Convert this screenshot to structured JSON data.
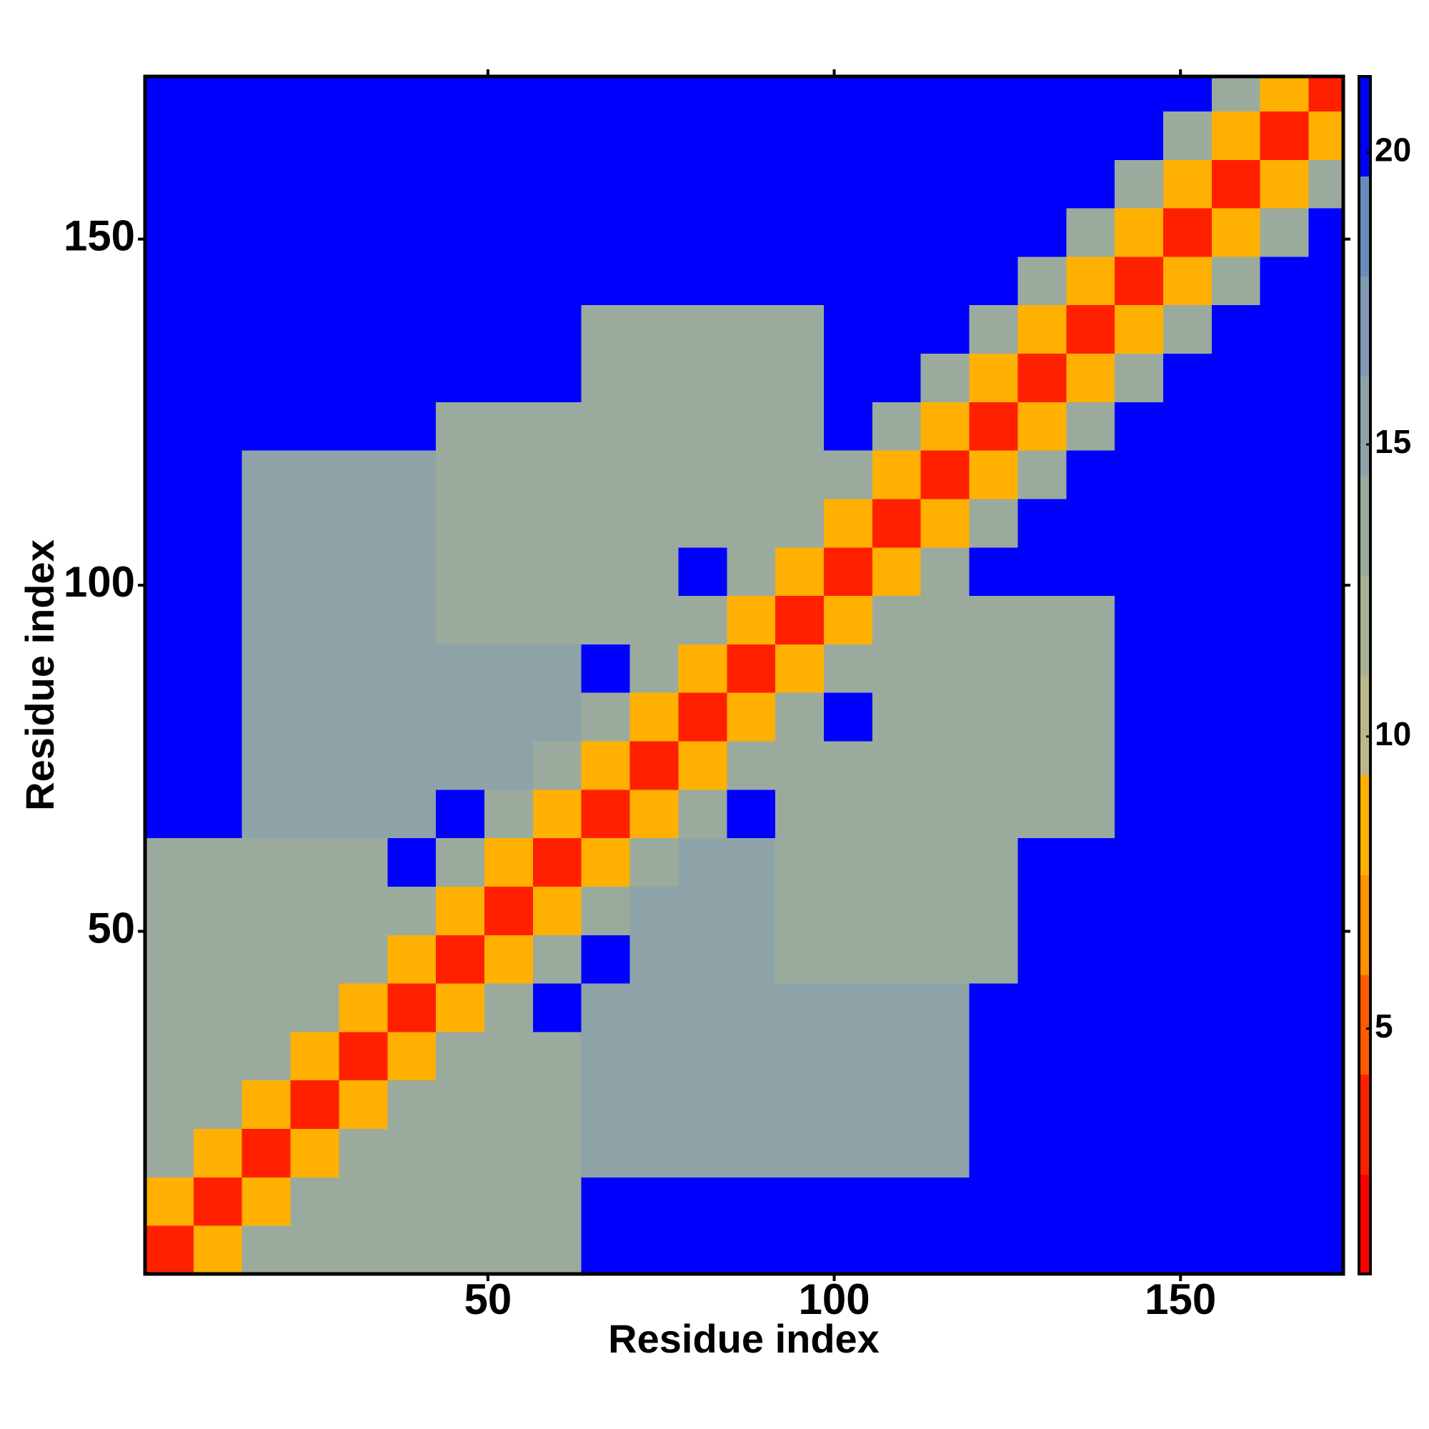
{
  "chart_data": {
    "type": "heatmap",
    "x_label": "Residue index",
    "y_label": "Residue index",
    "xbins": [
      0.5,
      7.5,
      14.5,
      21.5,
      28.5,
      35.5,
      42.5,
      49.5,
      56.5,
      63.5,
      70.5,
      77.5,
      84.5,
      91.5,
      98.5,
      105.5,
      112.5,
      119.5,
      126.5,
      133.5,
      140.5,
      147.5,
      154.5,
      161.5,
      168.5,
      173.5
    ],
    "ybins": [
      0.5,
      7.5,
      14.5,
      21.5,
      28.5,
      35.5,
      42.5,
      49.5,
      56.5,
      63.5,
      70.5,
      77.5,
      84.5,
      91.5,
      98.5,
      105.5,
      112.5,
      119.5,
      126.5,
      133.5,
      140.5,
      147.5,
      154.5,
      161.5,
      168.5,
      173.5
    ],
    "xlim": [
      0.5,
      173.5
    ],
    "ylim": [
      0.5,
      173.5
    ],
    "xticks": [
      50,
      100,
      150
    ],
    "yticks": [
      50,
      100,
      150
    ],
    "z": [
      [
        4,
        9,
        13,
        13,
        13,
        13,
        14,
        14,
        14,
        21,
        21,
        21,
        21,
        21,
        21,
        21,
        21,
        21,
        21,
        21,
        21,
        21,
        21,
        21,
        21
      ],
      [
        9,
        4,
        9,
        13,
        13,
        13,
        14,
        14,
        14,
        21,
        21,
        21,
        21,
        21,
        21,
        21,
        21,
        21,
        21,
        21,
        21,
        21,
        21,
        21,
        21
      ],
      [
        13,
        9,
        4,
        9,
        13,
        13,
        14,
        14,
        14,
        15,
        15,
        15,
        15,
        15,
        15,
        15,
        15,
        21,
        21,
        21,
        21,
        21,
        21,
        21,
        21
      ],
      [
        13,
        13,
        9,
        4,
        9,
        14,
        14,
        14,
        14,
        15,
        15,
        15,
        15,
        15,
        15,
        15,
        15,
        21,
        21,
        21,
        21,
        21,
        21,
        21,
        21
      ],
      [
        13,
        13,
        13,
        9,
        4,
        9,
        14,
        14,
        14,
        15,
        15,
        15,
        15,
        15,
        15,
        15,
        15,
        21,
        21,
        21,
        21,
        21,
        21,
        21,
        21
      ],
      [
        13,
        13,
        13,
        14,
        9,
        4,
        9,
        14,
        21,
        15,
        15,
        15,
        15,
        15,
        15,
        15,
        15,
        21,
        21,
        21,
        21,
        21,
        21,
        21,
        21
      ],
      [
        14,
        14,
        14,
        14,
        14,
        9,
        4,
        9,
        14,
        21,
        15,
        15,
        15,
        14,
        14,
        14,
        14,
        14,
        21,
        21,
        21,
        21,
        21,
        21,
        21
      ],
      [
        14,
        14,
        14,
        14,
        14,
        14,
        9,
        4,
        9,
        14,
        15,
        15,
        15,
        14,
        14,
        14,
        14,
        14,
        21,
        21,
        21,
        21,
        21,
        21,
        21
      ],
      [
        14,
        14,
        14,
        14,
        14,
        21,
        14,
        9,
        4,
        9,
        14,
        15,
        15,
        14,
        14,
        14,
        14,
        14,
        21,
        21,
        21,
        21,
        21,
        21,
        21
      ],
      [
        21,
        21,
        15,
        15,
        15,
        15,
        21,
        14,
        9,
        4,
        9,
        14,
        21,
        14,
        14,
        14,
        14,
        14,
        14,
        14,
        21,
        21,
        21,
        21,
        21
      ],
      [
        21,
        21,
        15,
        15,
        15,
        15,
        15,
        15,
        14,
        9,
        4,
        9,
        14,
        14,
        14,
        14,
        14,
        14,
        14,
        14,
        21,
        21,
        21,
        21,
        21
      ],
      [
        21,
        21,
        15,
        15,
        15,
        15,
        15,
        15,
        15,
        14,
        9,
        4,
        9,
        14,
        21,
        14,
        14,
        14,
        14,
        14,
        21,
        21,
        21,
        21,
        21
      ],
      [
        21,
        21,
        15,
        15,
        15,
        15,
        15,
        15,
        15,
        21,
        14,
        9,
        4,
        9,
        14,
        14,
        14,
        14,
        14,
        14,
        21,
        21,
        21,
        21,
        21
      ],
      [
        21,
        21,
        15,
        15,
        15,
        15,
        14,
        14,
        14,
        14,
        14,
        14,
        9,
        4,
        9,
        14,
        14,
        14,
        14,
        14,
        21,
        21,
        21,
        21,
        21
      ],
      [
        21,
        21,
        15,
        15,
        15,
        15,
        14,
        14,
        14,
        14,
        14,
        21,
        14,
        9,
        4,
        9,
        14,
        21,
        21,
        21,
        21,
        21,
        21,
        21,
        21
      ],
      [
        21,
        21,
        15,
        15,
        15,
        15,
        14,
        14,
        14,
        14,
        14,
        14,
        14,
        14,
        9,
        4,
        9,
        14,
        21,
        21,
        21,
        21,
        21,
        21,
        21
      ],
      [
        21,
        21,
        15,
        15,
        15,
        15,
        14,
        14,
        14,
        14,
        14,
        14,
        14,
        14,
        14,
        9,
        4,
        9,
        14,
        21,
        21,
        21,
        21,
        21,
        21
      ],
      [
        21,
        21,
        21,
        21,
        21,
        21,
        14,
        14,
        14,
        14,
        14,
        14,
        14,
        14,
        21,
        14,
        9,
        4,
        9,
        14,
        21,
        21,
        21,
        21,
        21
      ],
      [
        21,
        21,
        21,
        21,
        21,
        21,
        21,
        21,
        21,
        14,
        14,
        14,
        14,
        14,
        21,
        21,
        14,
        9,
        4,
        9,
        14,
        21,
        21,
        21,
        21
      ],
      [
        21,
        21,
        21,
        21,
        21,
        21,
        21,
        21,
        21,
        14,
        14,
        14,
        14,
        14,
        21,
        21,
        21,
        14,
        9,
        4,
        9,
        14,
        21,
        21,
        21
      ],
      [
        21,
        21,
        21,
        21,
        21,
        21,
        21,
        21,
        21,
        21,
        21,
        21,
        21,
        21,
        21,
        21,
        21,
        21,
        14,
        9,
        4,
        9,
        14,
        21,
        21
      ],
      [
        21,
        21,
        21,
        21,
        21,
        21,
        21,
        21,
        21,
        21,
        21,
        21,
        21,
        21,
        21,
        21,
        21,
        21,
        21,
        14,
        9,
        4,
        9,
        14,
        21
      ],
      [
        21,
        21,
        21,
        21,
        21,
        21,
        21,
        21,
        21,
        21,
        21,
        21,
        21,
        21,
        21,
        21,
        21,
        21,
        21,
        21,
        14,
        9,
        4,
        9,
        14
      ],
      [
        21,
        21,
        21,
        21,
        21,
        21,
        21,
        21,
        21,
        21,
        21,
        21,
        21,
        21,
        21,
        21,
        21,
        21,
        21,
        21,
        21,
        14,
        9,
        4,
        9
      ],
      [
        21,
        21,
        21,
        21,
        21,
        21,
        21,
        21,
        21,
        21,
        21,
        21,
        21,
        21,
        21,
        21,
        21,
        21,
        21,
        21,
        21,
        21,
        14,
        9,
        4
      ]
    ],
    "colorbar": {
      "lim": [
        0.8,
        21.3
      ],
      "ticks": [
        5,
        10,
        15,
        20
      ],
      "colors": [
        "#ff0000",
        "#ff2000",
        "#ff5a00",
        "#ff9000",
        "#ffb000",
        "#b9b98a",
        "#a9b394",
        "#9aab9e",
        "#8ea3a8",
        "#7f9ab2",
        "#6a8cbd",
        "#0000ff"
      ]
    }
  }
}
